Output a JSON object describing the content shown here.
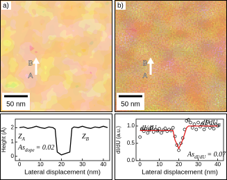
{
  "panels": [
    {
      "label": "a)",
      "points": [
        "B",
        "A"
      ],
      "scale": "50 nm"
    },
    {
      "label": "b)",
      "points": [
        "B",
        "A"
      ],
      "scale": "50 nm"
    }
  ],
  "chart_data": [
    {
      "type": "line",
      "y_label": "Height (Å)",
      "x_label": "Lateral displacement (nm)",
      "annotations": [
        {
          "text": "Z",
          "sub": "A"
        },
        {
          "text": "Z",
          "sub": "B"
        },
        {
          "text": "As",
          "sub": "dope",
          "rest": "= 0.02"
        }
      ],
      "xlim": [
        -2,
        43
      ],
      "ylim": [
        -0.3,
        2.6
      ],
      "xticks": [
        0,
        10,
        20,
        30,
        40
      ],
      "yticks": [
        0,
        1,
        2
      ],
      "series": [
        {
          "color": "#000000",
          "type": "line",
          "x": [
            0,
            2,
            4,
            6,
            8,
            10,
            12,
            14,
            16,
            17,
            18,
            20,
            22,
            24,
            25,
            26,
            28,
            30,
            32,
            34,
            36,
            38,
            40,
            42
          ],
          "values": [
            2.0,
            2.05,
            1.95,
            2.0,
            2.1,
            2.0,
            1.95,
            2.05,
            2.0,
            1.9,
            0.3,
            0.1,
            0.2,
            0.3,
            1.95,
            2.05,
            2.0,
            2.1,
            2.0,
            1.95,
            2.05,
            2.0,
            2.1,
            2.0
          ]
        }
      ]
    },
    {
      "type": "scatter",
      "y_label": "dI/dU (a.u.)",
      "x_label": "Lateral displacement (nm)",
      "annotations": [
        {
          "text": "dI/dU",
          "sub": "A"
        },
        {
          "text": "dI/dU",
          "sub": "B"
        },
        {
          "text": "As",
          "sub": "dI/dU",
          "rest": "= 0.07"
        }
      ],
      "xlim": [
        -2,
        43
      ],
      "ylim": [
        0,
        1.2
      ],
      "xticks": [
        0,
        10,
        20,
        30,
        40
      ],
      "yticks": [
        {
          "value": 0,
          "label": "0.0"
        },
        {
          "value": 0.5,
          "label": "0.5"
        },
        {
          "value": 1,
          "label": "1.0"
        }
      ],
      "series": [
        {
          "color": "#000000",
          "type": "scatter",
          "x": [
            0,
            1,
            2,
            3,
            4,
            5,
            6,
            7,
            8,
            9,
            10,
            11,
            12,
            13,
            14,
            15,
            16,
            17,
            18,
            19,
            20,
            21,
            22,
            23,
            24,
            25,
            26,
            27,
            28,
            29,
            30,
            31,
            32,
            33,
            34,
            35,
            36,
            37,
            38,
            39,
            40
          ],
          "values": [
            0.68,
            0.9,
            0.85,
            0.92,
            0.8,
            0.88,
            0.95,
            0.83,
            0.9,
            0.86,
            0.92,
            0.8,
            0.88,
            0.93,
            0.85,
            0.9,
            0.87,
            0.95,
            0.7,
            0.45,
            0.3,
            0.5,
            0.65,
            0.9,
            1.15,
            1.18,
            1.1,
            0.95,
            1.05,
            0.9,
            1.1,
            0.98,
            1.05,
            0.9,
            1.0,
            1.12,
            0.95,
            1.0,
            0.92,
            1.05,
            1.0
          ]
        },
        {
          "color": "#e02020",
          "type": "line",
          "x": [
            0,
            17,
            18,
            20,
            22,
            24,
            25,
            40
          ],
          "values": [
            0.87,
            0.87,
            0.6,
            0.35,
            0.6,
            0.95,
            1.0,
            1.0
          ]
        }
      ]
    }
  ]
}
